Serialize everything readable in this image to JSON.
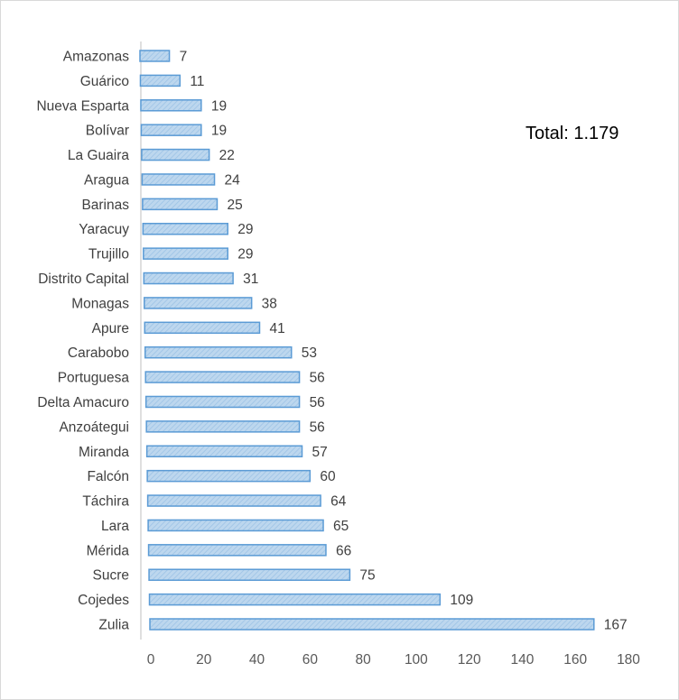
{
  "chart_data": {
    "type": "bar",
    "orientation": "horizontal",
    "title": "",
    "xlabel": "",
    "ylabel": "",
    "annotation": "Total: 1.179",
    "categories": [
      "Amazonas",
      "Guárico",
      "Nueva Esparta",
      "Bolívar",
      "La Guaira",
      "Aragua",
      "Barinas",
      "Yaracuy",
      "Trujillo",
      "Distrito Capital",
      "Monagas",
      "Apure",
      "Carabobo",
      "Portuguesa",
      "Delta Amacuro",
      "Anzoátegui",
      "Miranda",
      "Falcón",
      "Táchira",
      "Lara",
      "Mérida",
      "Sucre",
      "Cojedes",
      "Zulia"
    ],
    "values": [
      7,
      11,
      19,
      19,
      22,
      24,
      25,
      29,
      29,
      31,
      38,
      41,
      53,
      56,
      56,
      56,
      57,
      60,
      64,
      65,
      66,
      75,
      109,
      167
    ],
    "xlim": [
      0,
      180
    ],
    "xticks": [
      0,
      20,
      40,
      60,
      80,
      100,
      120,
      140,
      160,
      180
    ],
    "grid": false,
    "legend": "none",
    "bar_fill": "#bdd7ee",
    "bar_hatch": "#9dc3e6",
    "bar_stroke": "#5b9bd5",
    "axis_color": "#bfbfbf"
  }
}
